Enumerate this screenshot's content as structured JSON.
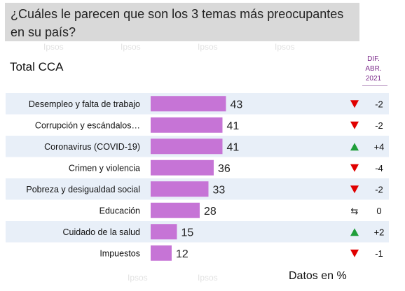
{
  "question": "¿Cuáles le parecen que son los 3 temas más preocupantes en su país?",
  "subtitle": "Total CCA",
  "dif_header": [
    "DIF.",
    "ABR.",
    "2021"
  ],
  "footnote": "Datos en %",
  "watermark": "Ipsos",
  "colors": {
    "bar": "#c674d6",
    "band": "#e8eff8",
    "down": "#e00000",
    "up": "#1f9e3a",
    "neutral": "#222222"
  },
  "chart_data": {
    "type": "bar",
    "orientation": "horizontal",
    "categories": [
      "Desempleo y falta de trabajo",
      "Corrupción y escándalos…",
      "Coronavirus (COVID-19)",
      "Crimen y violencia",
      "Pobreza y desigualdad social",
      "Educación",
      "Cuidado de la salud",
      "Impuestos"
    ],
    "values": [
      43,
      41,
      41,
      36,
      33,
      28,
      15,
      12
    ],
    "diff": [
      "-2",
      "-2",
      "+4",
      "-4",
      "-2",
      "0",
      "+2",
      "-1"
    ],
    "diff_icon": [
      "down",
      "down",
      "up",
      "down",
      "down",
      "neutral",
      "up",
      "down"
    ],
    "xlim": [
      0,
      100
    ]
  }
}
